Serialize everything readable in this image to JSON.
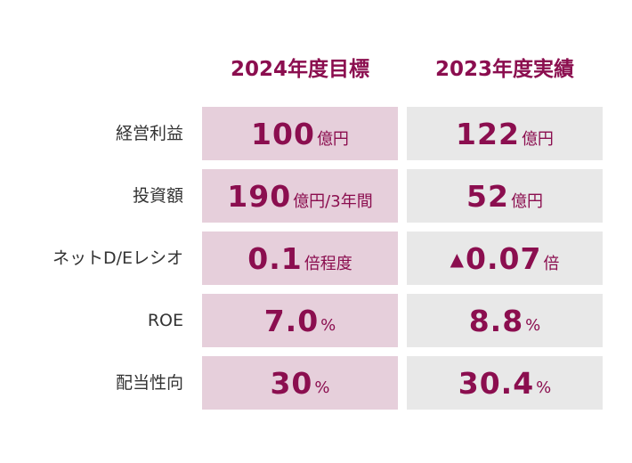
{
  "headers": {
    "target": "2024年度目標",
    "actual": "2023年度実績"
  },
  "rows": [
    {
      "label": "経営利益",
      "target": {
        "value": "100",
        "unit": "億円"
      },
      "actual": {
        "prefix": "",
        "value": "122",
        "unit": "億円"
      }
    },
    {
      "label": "投資額",
      "target": {
        "value": "190",
        "unit": "億円/3年間"
      },
      "actual": {
        "prefix": "",
        "value": "52",
        "unit": "億円"
      }
    },
    {
      "label": "ネットD/Eレシオ",
      "target": {
        "value": "0.1",
        "unit": "倍程度"
      },
      "actual": {
        "prefix": "▲",
        "value": "0.07",
        "unit": "倍"
      }
    },
    {
      "label": "ROE",
      "target": {
        "value": "7.0",
        "unit": "%"
      },
      "actual": {
        "prefix": "",
        "value": "8.8",
        "unit": "%"
      }
    },
    {
      "label": "配当性向",
      "target": {
        "value": "30",
        "unit": "%"
      },
      "actual": {
        "prefix": "",
        "value": "30.4",
        "unit": "%"
      }
    }
  ]
}
